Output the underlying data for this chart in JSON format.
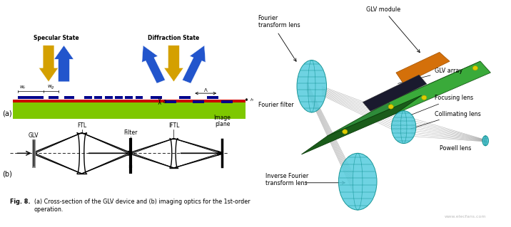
{
  "fig_width": 7.16,
  "fig_height": 3.19,
  "dpi": 100,
  "bg_color": "#ffffff",
  "left_panel": {
    "specular_label": "Specular State",
    "diffraction_label": "Diffraction State",
    "caption_bold": "Fig. 8.",
    "caption_normal": "(a) Cross-section of the GLV device and (b) imaging optics for the 1st-order\noperation.",
    "optics_labels": [
      "GLV",
      "FTL",
      "Filter",
      "IFTL",
      "Image\nplane"
    ],
    "ribbon_color": "#00008B",
    "green_color": "#7EC800",
    "red_color": "#CC0000",
    "blue_arrow_color": "#2255CC",
    "yellow_arrow_color": "#D4A000"
  },
  "right_panel": {
    "board_color": "#2E8B3A",
    "orange_color": "#D4700A",
    "array_color": "#1A1A2E",
    "lens_color": "#55CCDD",
    "lens_edge": "#008888",
    "beam_color": "#888888",
    "watermark": "www.elecfans.com"
  }
}
